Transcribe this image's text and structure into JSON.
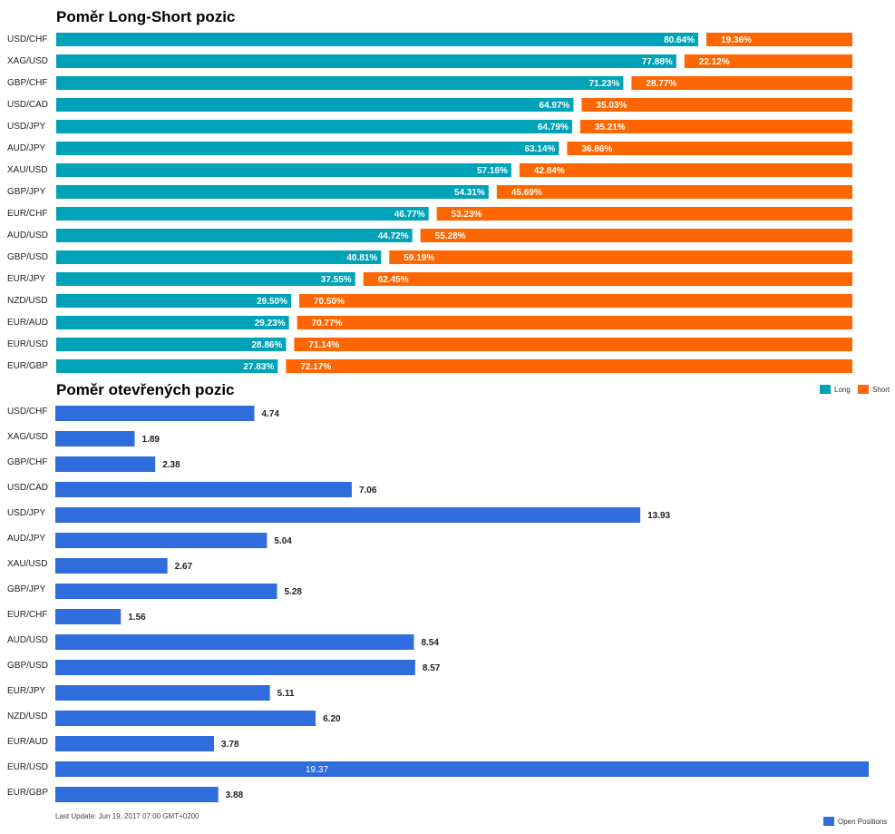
{
  "chart_data": [
    {
      "type": "bar",
      "orientation": "horizontal",
      "stacked": true,
      "title": "Poměr Long-Short pozic",
      "categories": [
        "USD/CHF",
        "XAG/USD",
        "GBP/CHF",
        "USD/CAD",
        "USD/JPY",
        "AUD/JPY",
        "XAU/USD",
        "GBP/JPY",
        "EUR/CHF",
        "AUD/USD",
        "GBP/USD",
        "EUR/JPY",
        "NZD/USD",
        "EUR/AUD",
        "EUR/USD",
        "EUR/GBP"
      ],
      "series": [
        {
          "name": "Long",
          "color": "#00a2b8",
          "values": [
            80.64,
            77.88,
            71.23,
            64.97,
            64.79,
            63.14,
            57.16,
            54.31,
            46.77,
            44.72,
            40.81,
            37.55,
            29.5,
            29.23,
            28.86,
            27.83
          ]
        },
        {
          "name": "Short",
          "color": "#ff6600",
          "values": [
            19.36,
            22.12,
            28.77,
            35.03,
            35.21,
            36.86,
            42.84,
            45.69,
            53.23,
            55.28,
            59.19,
            62.45,
            70.5,
            70.77,
            71.14,
            72.17
          ]
        }
      ],
      "labels": [
        [
          "80.64%",
          "19.36%"
        ],
        [
          "77.88%",
          "22.12%"
        ],
        [
          "71.23%",
          "28.77%"
        ],
        [
          "64.97%",
          "35.03%"
        ],
        [
          "64.79%",
          "35.21%"
        ],
        [
          "63.14%",
          "36.86%"
        ],
        [
          "57.16%",
          "42.84%"
        ],
        [
          "54.31%",
          "45.69%"
        ],
        [
          "46.77%",
          "53.23%"
        ],
        [
          "44.72%",
          "55.28%"
        ],
        [
          "40.81%",
          "59.19%"
        ],
        [
          "37.55%",
          "62.45%"
        ],
        [
          "29.50%",
          "70.50%"
        ],
        [
          "29.23%",
          "70.77%"
        ],
        [
          "28.86%",
          "71.14%"
        ],
        [
          "27.83%",
          "72.17%"
        ]
      ],
      "xlim": [
        0,
        100
      ],
      "legend_position": "top-right"
    },
    {
      "type": "bar",
      "orientation": "horizontal",
      "title": "Poměr otevřených pozic",
      "categories": [
        "USD/CHF",
        "XAG/USD",
        "GBP/CHF",
        "USD/CAD",
        "USD/JPY",
        "AUD/JPY",
        "XAU/USD",
        "GBP/JPY",
        "EUR/CHF",
        "AUD/USD",
        "GBP/USD",
        "EUR/JPY",
        "NZD/USD",
        "EUR/AUD",
        "EUR/USD",
        "EUR/GBP"
      ],
      "series": [
        {
          "name": "Open Positions",
          "color": "#2e6ddb",
          "values": [
            4.74,
            1.89,
            2.38,
            7.06,
            13.93,
            5.04,
            2.67,
            5.28,
            1.56,
            8.54,
            8.57,
            5.11,
            6.2,
            3.78,
            19.37,
            3.88
          ]
        }
      ],
      "labels": [
        "4.74",
        "1.89",
        "2.38",
        "7.06",
        "13.93",
        "5.04",
        "2.67",
        "5.28",
        "1.56",
        "8.54",
        "8.57",
        "5.11",
        "6.20",
        "3.78",
        "19.37",
        "3.88"
      ],
      "xlim": [
        0,
        19.37
      ],
      "legend_position": "bottom-right",
      "footer": "Last Update: Jun 19, 2017 07:00 GMT+0200"
    }
  ]
}
